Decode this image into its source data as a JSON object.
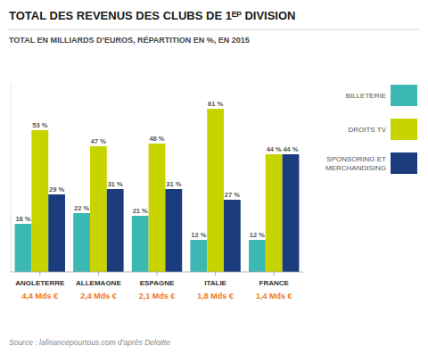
{
  "chart_data": {
    "type": "bar",
    "title": "TOTAL DES REVENUS DES CLUBS DE 1ᴱᴾ DIVISION",
    "subtitle": "TOTAL EN MILLIARDS D’EUROS, RÉPARTITION EN %, EN 2015",
    "source": "Source : lafinancepourtous.com d’après Deloitte",
    "categories": [
      "ANGLETERRE",
      "ALLEMAGNE",
      "ESPAGNE",
      "ITALIE",
      "FRANCE"
    ],
    "totals": [
      4.4,
      2.4,
      2.1,
      1.8,
      1.4
    ],
    "total_labels": [
      "4,4 Mds €",
      "2,4 Mds €",
      "2,1 Mds €",
      "1,8 Mds €",
      "1,4 Mds €"
    ],
    "series": [
      {
        "name": "BILLETERIE",
        "color": "#3cb8b4",
        "values": [
          18,
          22,
          21,
          12,
          12
        ],
        "value_labels": [
          "18 %",
          "22 %",
          "21 %",
          "12 %",
          "12 %"
        ]
      },
      {
        "name": "DROITS TV",
        "color": "#c8d400",
        "values": [
          53,
          47,
          48,
          61,
          44
        ],
        "value_labels": [
          "53 %",
          "47 %",
          "48 %",
          "61 %",
          "44 %"
        ]
      },
      {
        "name": "SPONSORING ET\nMERCHANDISING",
        "color": "#1b3d7e",
        "values": [
          29,
          31,
          31,
          27,
          44
        ],
        "value_labels": [
          "29 %",
          "31 %",
          "31 %",
          "27 %",
          "44 %"
        ]
      }
    ],
    "ylim": [
      0,
      70
    ],
    "grid": false,
    "legend": "right",
    "data_labels": true,
    "tick_labels": "x"
  }
}
